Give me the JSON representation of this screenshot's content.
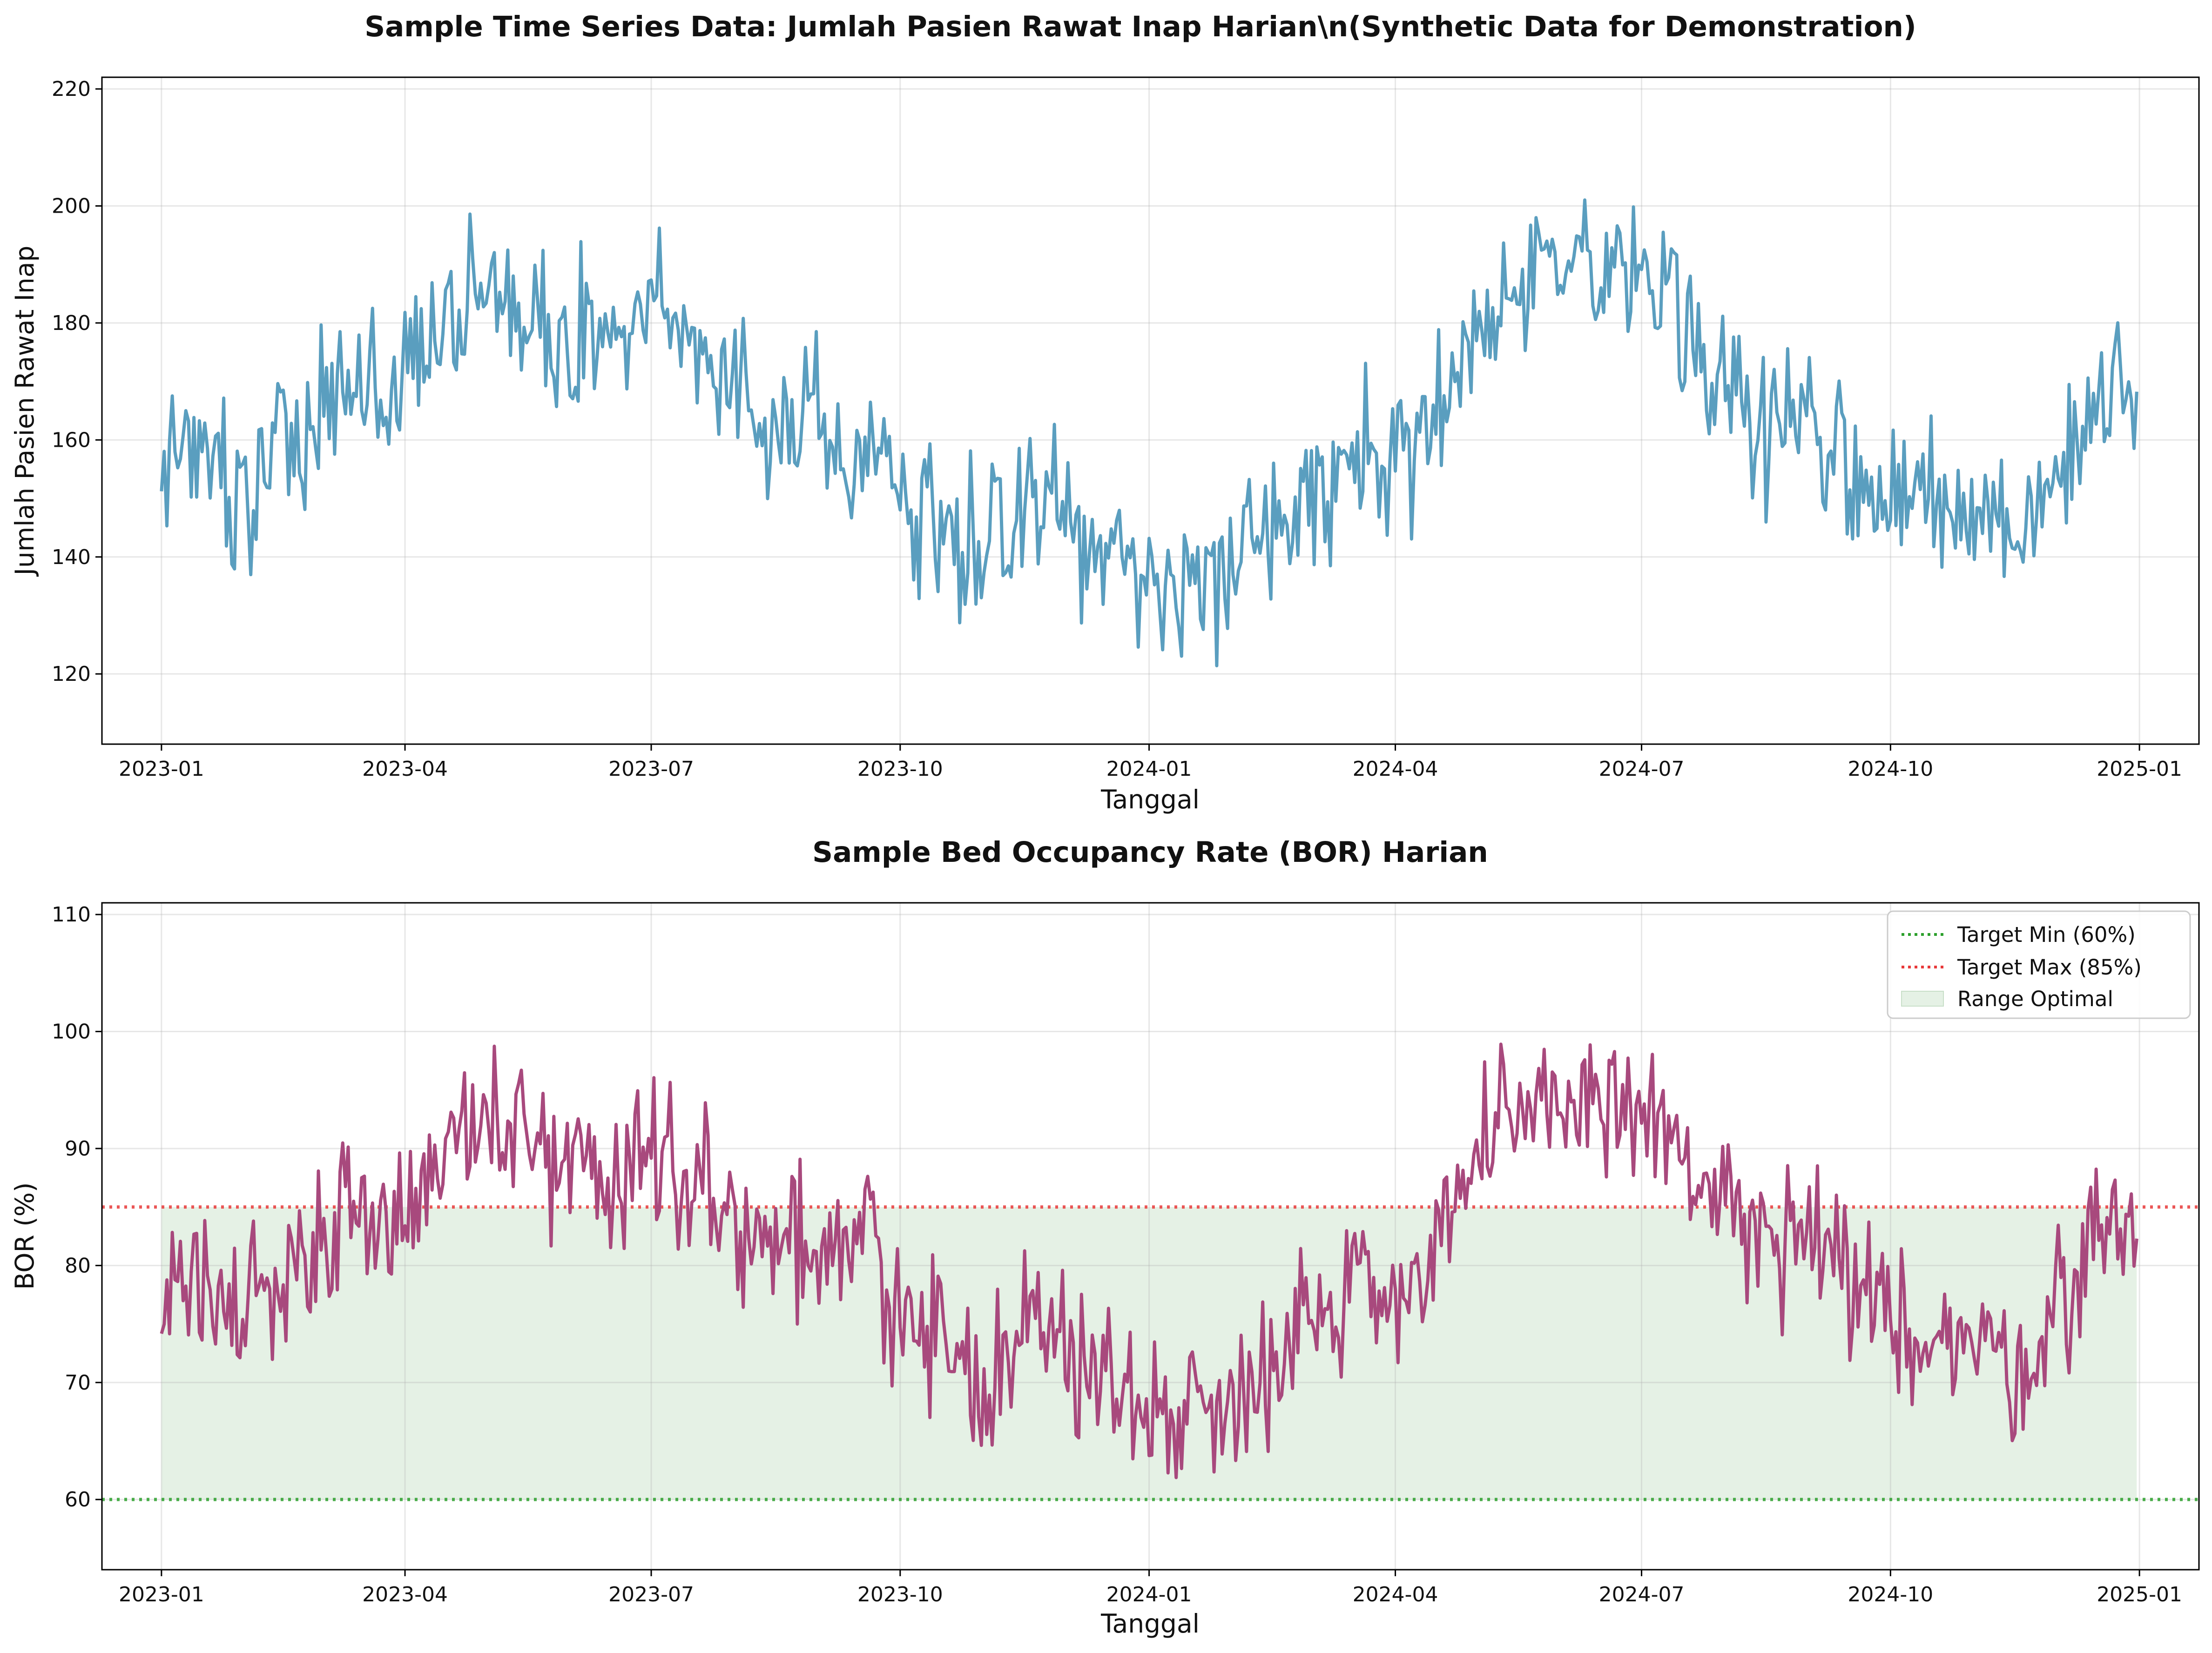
{
  "chart_data": [
    {
      "type": "line",
      "title": "Sample Time Series Data: Jumlah Pasien Rawat Inap Harian\\n(Synthetic Data for Demonstration)",
      "xlabel": "Tanggal",
      "ylabel": "Jumlah Pasien Rawat Inap",
      "xlim": [
        "2022-12-10",
        "2025-01-23"
      ],
      "ylim": [
        108,
        222
      ],
      "x_ticks": [
        "2023-01",
        "2023-04",
        "2023-07",
        "2023-10",
        "2024-01",
        "2024-04",
        "2024-07",
        "2024-10",
        "2025-01"
      ],
      "y_ticks": [
        120,
        140,
        160,
        180,
        200,
        220
      ],
      "grid": true,
      "color": "#5a9ebf",
      "series": [
        {
          "x_start": "2023-01-01",
          "x_end": "2024-12-31",
          "sampling": "semi-monthly",
          "values": [
            155,
            160,
            148,
            158,
            163,
            172,
            166,
            175,
            183,
            186,
            180,
            178,
            176,
            180,
            178,
            170,
            165,
            165,
            158,
            165,
            150,
            145,
            140,
            150,
            148,
            141,
            138,
            136,
            135,
            140,
            146,
            152,
            158,
            155,
            162,
            175,
            182,
            185,
            190,
            188,
            185,
            176,
            170,
            162,
            165,
            158,
            152,
            150,
            148,
            145,
            143,
            155,
            165,
            172
          ]
        }
      ]
    },
    {
      "type": "line",
      "title": "Sample Bed Occupancy Rate (BOR) Harian",
      "xlabel": "Tanggal",
      "ylabel": "BOR (%)",
      "xlim": [
        "2022-12-10",
        "2025-01-23"
      ],
      "ylim": [
        54,
        111
      ],
      "x_ticks": [
        "2023-01",
        "2023-04",
        "2023-07",
        "2023-10",
        "2024-01",
        "2024-04",
        "2024-07",
        "2024-10",
        "2025-01"
      ],
      "y_ticks": [
        60,
        70,
        80,
        90,
        100,
        110
      ],
      "grid": true,
      "legend_position": "top-right",
      "color": "#a8497d",
      "series": [
        {
          "x_start": "2023-01-01",
          "x_end": "2024-12-31",
          "sampling": "semi-monthly",
          "values": [
            77.5,
            80,
            74,
            79,
            81.5,
            86,
            83,
            87.5,
            91.5,
            93,
            90,
            89,
            88,
            90,
            89,
            85,
            82.5,
            82.5,
            79,
            82.5,
            75,
            72.5,
            70,
            75,
            74,
            70.5,
            69,
            68,
            67.5,
            70,
            73,
            76,
            79,
            77.5,
            81,
            87.5,
            91,
            92.5,
            95,
            94,
            92.5,
            88,
            85,
            81,
            82.5,
            79,
            76,
            75,
            74,
            72.5,
            71.5,
            77.5,
            82.5,
            86
          ]
        }
      ],
      "reference_lines": [
        {
          "name": "Target Min (60%)",
          "y": 60,
          "color": "#2ca02c",
          "style": "dotted"
        },
        {
          "name": "Target Max (85%)",
          "y": 85,
          "color": "#e8393a",
          "style": "dotted"
        }
      ],
      "band": {
        "name": "Range Optimal",
        "y_range": [
          60,
          85
        ],
        "color": "#e5f1e5"
      }
    }
  ]
}
